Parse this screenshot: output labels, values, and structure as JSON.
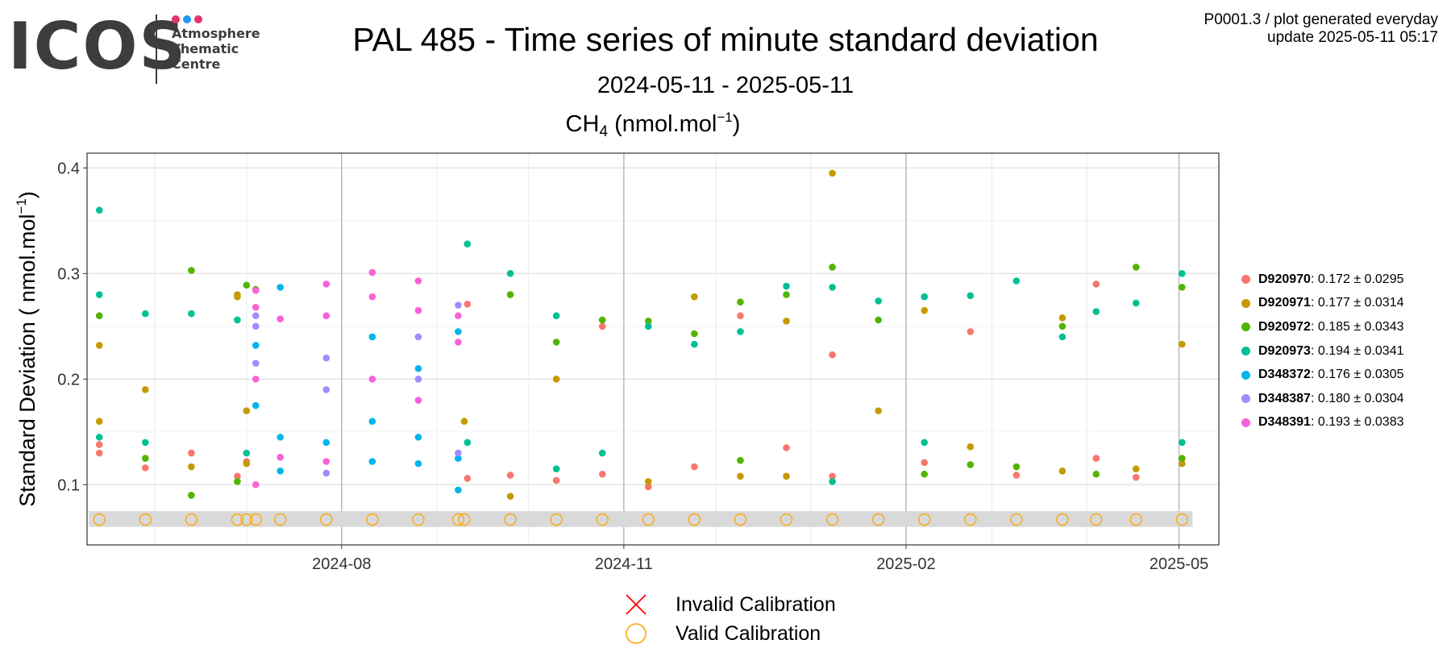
{
  "logo": {
    "word": "ICOS",
    "line1": "Atmosphere",
    "line2": "Thematic",
    "line3": "Centre",
    "dot_colors": [
      "#e6336a",
      "#2196f3",
      "#e6336a"
    ]
  },
  "header": {
    "title": "PAL 485 - Time series of minute standard deviation",
    "subtitle": "2024-05-11 - 2025-05-11",
    "var_main": "CH",
    "var_sub": "4",
    "var_unit_pre": " (nmol.mol",
    "var_unit_sup": "−1",
    "var_unit_post": ")",
    "meta_line1": "P0001.3 / plot generated everyday",
    "meta_line2": "update  2025-05-11 05:17"
  },
  "chart_data": {
    "type": "scatter",
    "ylabel": "Standard Deviation ( nmol.mol",
    "ylabel_sup": "−1",
    "ylabel_post": ")",
    "ylim": [
      0.043,
      0.414
    ],
    "xlim": [
      "2024-05-10",
      "2025-05-14"
    ],
    "y_ticks": [
      0.1,
      0.2,
      0.3,
      0.4
    ],
    "y_tick_labels": [
      "0.1",
      "0.2",
      "0.3",
      "0.4"
    ],
    "x_ticks": [
      "2024-08-01",
      "2024-11-01",
      "2025-02-01",
      "2025-05-01"
    ],
    "x_tick_labels": [
      "2024-08",
      "2024-11",
      "2025-02",
      "2025-05"
    ],
    "grid": true,
    "legend_position": "right",
    "calibration_dates": [
      "2024-05-14",
      "2024-05-29",
      "2024-06-13",
      "2024-06-28",
      "2024-07-01",
      "2024-07-04",
      "2024-07-12",
      "2024-07-27",
      "2024-08-11",
      "2024-08-26",
      "2024-09-08",
      "2024-09-10",
      "2024-09-25",
      "2024-10-10",
      "2024-10-25",
      "2024-11-09",
      "2024-11-24",
      "2024-12-09",
      "2024-12-24",
      "2025-01-08",
      "2025-01-23",
      "2025-02-07",
      "2025-02-22",
      "2025-03-09",
      "2025-03-24",
      "2025-04-04",
      "2025-04-17",
      "2025-05-02"
    ],
    "calibration_y": 0.067,
    "calibration_band": [
      0.06,
      0.075
    ],
    "series": [
      {
        "name": "D920970",
        "color": "#f8766d",
        "mean": "0.172",
        "sd": "0.0295",
        "points": [
          [
            "2024-05-14",
            0.13
          ],
          [
            "2024-05-14",
            0.138
          ],
          [
            "2024-05-29",
            0.116
          ],
          [
            "2024-06-13",
            0.13
          ],
          [
            "2024-06-28",
            0.108
          ],
          [
            "2024-07-01",
            0.122
          ],
          [
            "2024-09-11",
            0.271
          ],
          [
            "2024-09-11",
            0.106
          ],
          [
            "2024-09-25",
            0.109
          ],
          [
            "2024-10-10",
            0.104
          ],
          [
            "2024-10-25",
            0.25
          ],
          [
            "2024-10-25",
            0.11
          ],
          [
            "2024-11-09",
            0.098
          ],
          [
            "2024-11-24",
            0.117
          ],
          [
            "2024-12-09",
            0.26
          ],
          [
            "2024-12-24",
            0.135
          ],
          [
            "2025-01-08",
            0.108
          ],
          [
            "2025-01-08",
            0.223
          ],
          [
            "2025-02-07",
            0.121
          ],
          [
            "2025-02-22",
            0.245
          ],
          [
            "2025-03-09",
            0.109
          ],
          [
            "2025-04-04",
            0.125
          ],
          [
            "2025-04-04",
            0.29
          ],
          [
            "2025-04-17",
            0.107
          ]
        ]
      },
      {
        "name": "D920971",
        "color": "#c49a00",
        "mean": "0.177",
        "sd": "0.0314",
        "points": [
          [
            "2024-05-14",
            0.232
          ],
          [
            "2024-05-14",
            0.16
          ],
          [
            "2024-05-29",
            0.19
          ],
          [
            "2024-06-13",
            0.117
          ],
          [
            "2024-06-28",
            0.28
          ],
          [
            "2024-06-28",
            0.278
          ],
          [
            "2024-07-01",
            0.17
          ],
          [
            "2024-07-01",
            0.12
          ],
          [
            "2024-09-10",
            0.16
          ],
          [
            "2024-09-25",
            0.089
          ],
          [
            "2024-10-10",
            0.2
          ],
          [
            "2024-11-09",
            0.103
          ],
          [
            "2024-11-24",
            0.278
          ],
          [
            "2024-12-09",
            0.108
          ],
          [
            "2024-12-24",
            0.108
          ],
          [
            "2024-12-24",
            0.255
          ],
          [
            "2025-01-08",
            0.395
          ],
          [
            "2025-01-23",
            0.17
          ],
          [
            "2025-02-07",
            0.265
          ],
          [
            "2025-02-22",
            0.136
          ],
          [
            "2025-03-24",
            0.113
          ],
          [
            "2025-03-24",
            0.258
          ],
          [
            "2025-04-17",
            0.115
          ],
          [
            "2025-05-02",
            0.233
          ],
          [
            "2025-05-02",
            0.12
          ]
        ]
      },
      {
        "name": "D920972",
        "color": "#53b400",
        "mean": "0.185",
        "sd": "0.0343",
        "points": [
          [
            "2024-05-14",
            0.26
          ],
          [
            "2024-05-29",
            0.125
          ],
          [
            "2024-06-13",
            0.303
          ],
          [
            "2024-06-13",
            0.09
          ],
          [
            "2024-06-28",
            0.103
          ],
          [
            "2024-07-01",
            0.289
          ],
          [
            "2024-07-04",
            0.285
          ],
          [
            "2024-09-25",
            0.28
          ],
          [
            "2024-10-10",
            0.235
          ],
          [
            "2024-10-25",
            0.256
          ],
          [
            "2024-11-09",
            0.255
          ],
          [
            "2024-11-24",
            0.243
          ],
          [
            "2024-12-09",
            0.273
          ],
          [
            "2024-12-09",
            0.123
          ],
          [
            "2024-12-24",
            0.28
          ],
          [
            "2025-01-08",
            0.306
          ],
          [
            "2025-01-23",
            0.256
          ],
          [
            "2025-02-07",
            0.11
          ],
          [
            "2025-02-22",
            0.119
          ],
          [
            "2025-03-09",
            0.117
          ],
          [
            "2025-03-24",
            0.25
          ],
          [
            "2025-04-04",
            0.11
          ],
          [
            "2025-04-17",
            0.306
          ],
          [
            "2025-05-02",
            0.287
          ],
          [
            "2025-05-02",
            0.125
          ]
        ]
      },
      {
        "name": "D920973",
        "color": "#00c094",
        "mean": "0.194",
        "sd": "0.0341",
        "points": [
          [
            "2024-05-14",
            0.36
          ],
          [
            "2024-05-14",
            0.28
          ],
          [
            "2024-05-14",
            0.145
          ],
          [
            "2024-05-29",
            0.262
          ],
          [
            "2024-05-29",
            0.14
          ],
          [
            "2024-06-13",
            0.262
          ],
          [
            "2024-06-28",
            0.256
          ],
          [
            "2024-07-01",
            0.13
          ],
          [
            "2024-09-11",
            0.328
          ],
          [
            "2024-09-11",
            0.14
          ],
          [
            "2024-09-25",
            0.3
          ],
          [
            "2024-10-10",
            0.26
          ],
          [
            "2024-10-10",
            0.115
          ],
          [
            "2024-10-25",
            0.13
          ],
          [
            "2024-11-09",
            0.25
          ],
          [
            "2024-11-24",
            0.233
          ],
          [
            "2024-12-09",
            0.245
          ],
          [
            "2024-12-24",
            0.288
          ],
          [
            "2025-01-08",
            0.287
          ],
          [
            "2025-01-08",
            0.103
          ],
          [
            "2025-01-23",
            0.274
          ],
          [
            "2025-02-07",
            0.278
          ],
          [
            "2025-02-07",
            0.14
          ],
          [
            "2025-02-22",
            0.279
          ],
          [
            "2025-03-09",
            0.293
          ],
          [
            "2025-03-24",
            0.24
          ],
          [
            "2025-04-04",
            0.264
          ],
          [
            "2025-04-17",
            0.272
          ],
          [
            "2025-05-02",
            0.3
          ],
          [
            "2025-05-02",
            0.14
          ]
        ]
      },
      {
        "name": "D348372",
        "color": "#00b6eb",
        "mean": "0.176",
        "sd": "0.0305",
        "points": [
          [
            "2024-07-04",
            0.232
          ],
          [
            "2024-07-04",
            0.175
          ],
          [
            "2024-07-12",
            0.287
          ],
          [
            "2024-07-12",
            0.113
          ],
          [
            "2024-07-12",
            0.145
          ],
          [
            "2024-07-27",
            0.14
          ],
          [
            "2024-08-11",
            0.24
          ],
          [
            "2024-08-11",
            0.122
          ],
          [
            "2024-08-11",
            0.16
          ],
          [
            "2024-08-26",
            0.21
          ],
          [
            "2024-08-26",
            0.12
          ],
          [
            "2024-08-26",
            0.145
          ],
          [
            "2024-09-08",
            0.095
          ],
          [
            "2024-09-08",
            0.245
          ],
          [
            "2024-09-08",
            0.125
          ]
        ]
      },
      {
        "name": "D348387",
        "color": "#a58aff",
        "mean": "0.180",
        "sd": "0.0304",
        "points": [
          [
            "2024-07-04",
            0.26
          ],
          [
            "2024-07-04",
            0.25
          ],
          [
            "2024-07-04",
            0.215
          ],
          [
            "2024-07-27",
            0.22
          ],
          [
            "2024-07-27",
            0.111
          ],
          [
            "2024-07-27",
            0.19
          ],
          [
            "2024-08-26",
            0.24
          ],
          [
            "2024-08-26",
            0.2
          ],
          [
            "2024-09-08",
            0.27
          ],
          [
            "2024-09-08",
            0.13
          ]
        ]
      },
      {
        "name": "D348391",
        "color": "#fb61d7",
        "mean": "0.193",
        "sd": "0.0383",
        "points": [
          [
            "2024-07-04",
            0.284
          ],
          [
            "2024-07-04",
            0.268
          ],
          [
            "2024-07-04",
            0.1
          ],
          [
            "2024-07-04",
            0.2
          ],
          [
            "2024-07-12",
            0.257
          ],
          [
            "2024-07-12",
            0.126
          ],
          [
            "2024-07-27",
            0.29
          ],
          [
            "2024-07-27",
            0.26
          ],
          [
            "2024-07-27",
            0.122
          ],
          [
            "2024-08-11",
            0.301
          ],
          [
            "2024-08-11",
            0.278
          ],
          [
            "2024-08-11",
            0.2
          ],
          [
            "2024-08-26",
            0.293
          ],
          [
            "2024-08-26",
            0.265
          ],
          [
            "2024-08-26",
            0.18
          ],
          [
            "2024-09-08",
            0.26
          ],
          [
            "2024-09-08",
            0.235
          ]
        ]
      }
    ]
  },
  "legend": {
    "items": [
      {
        "name": "D920970",
        "stat": ": 0.172 ± 0.0295"
      },
      {
        "name": "D920971",
        "stat": ": 0.177 ± 0.0314"
      },
      {
        "name": "D920972",
        "stat": ": 0.185 ± 0.0343"
      },
      {
        "name": "D920973",
        "stat": ": 0.194 ± 0.0341"
      },
      {
        "name": "D348372",
        "stat": ": 0.176 ± 0.0305"
      },
      {
        "name": "D348387",
        "stat": ": 0.180 ± 0.0304"
      },
      {
        "name": "D348391",
        "stat": ": 0.193 ± 0.0383"
      }
    ]
  },
  "calibration_legend": {
    "invalid_label": "Invalid Calibration",
    "valid_label": "Valid Calibration",
    "invalid_color": "#ff0000",
    "valid_color": "#ffa500"
  }
}
